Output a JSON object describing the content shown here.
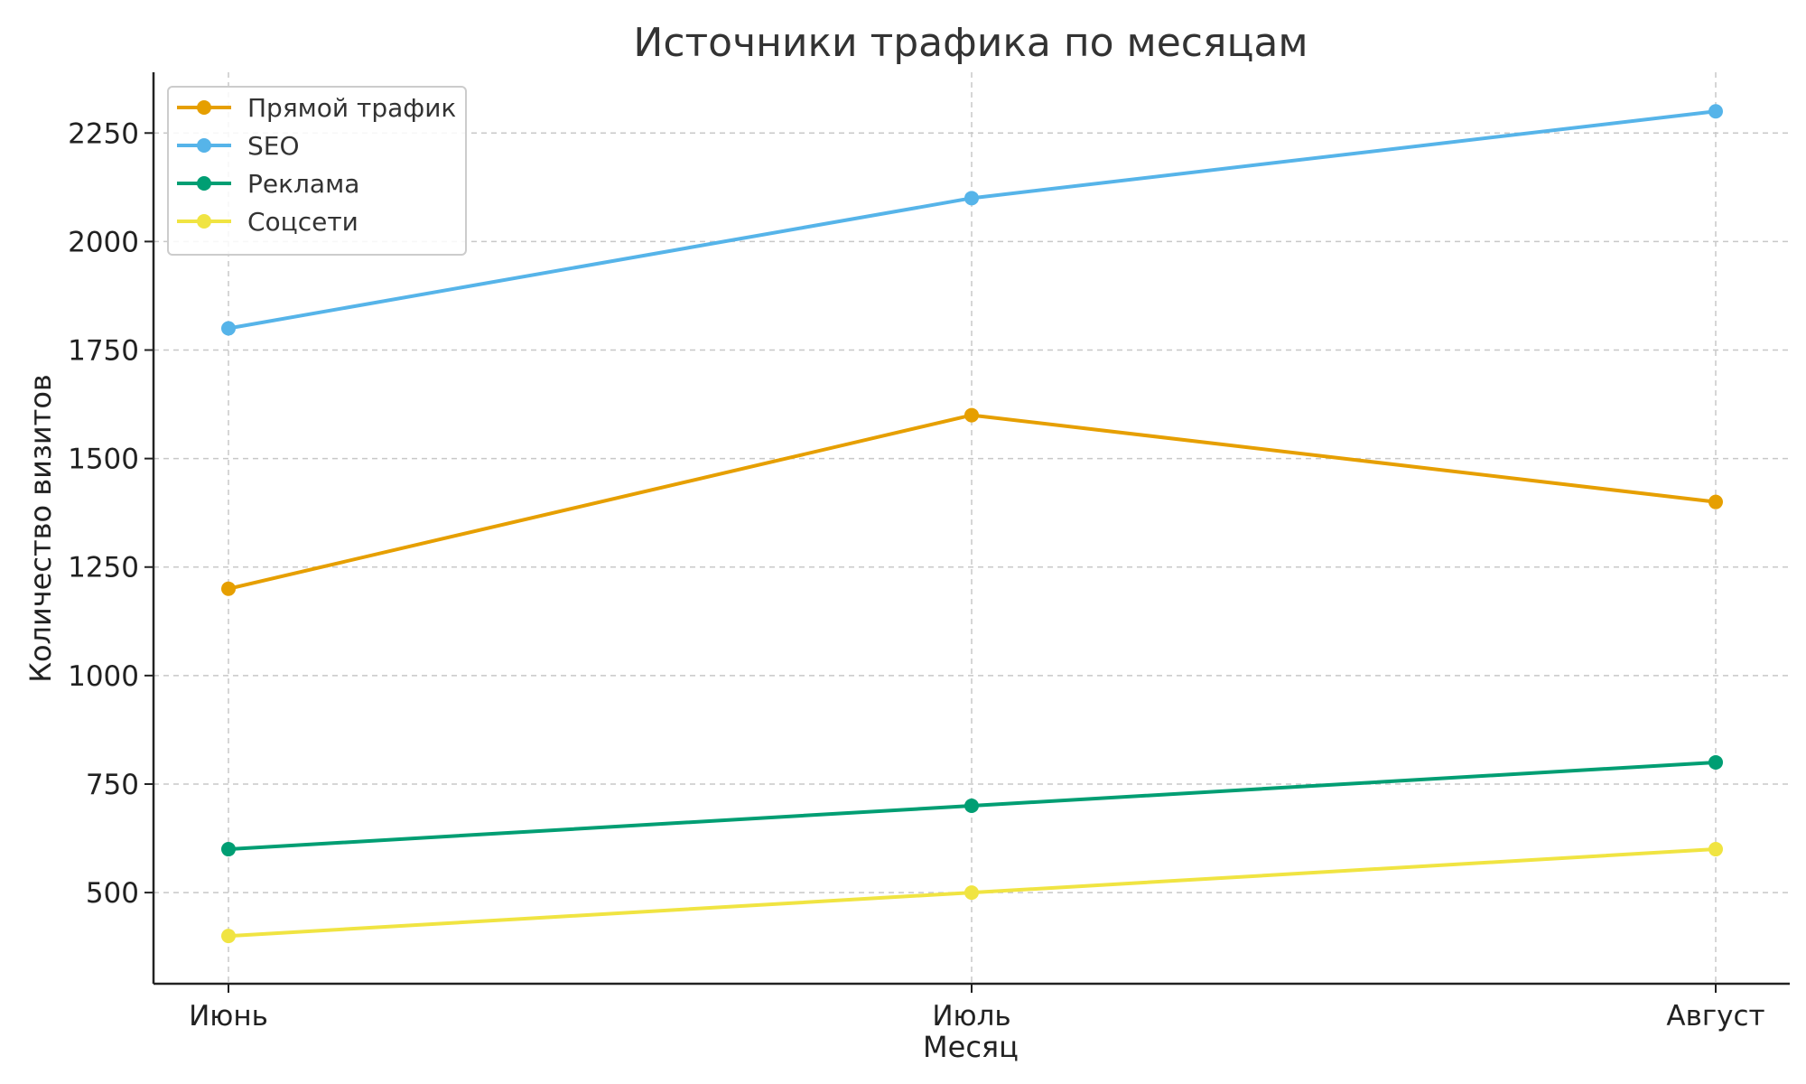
{
  "chart_data": {
    "type": "line",
    "title": "Источники трафика по месяцам",
    "xlabel": "Месяц",
    "ylabel": "Количество визитов",
    "categories": [
      "Июнь",
      "Июль",
      "Август"
    ],
    "ylim": [
      290,
      2390
    ],
    "yticks": [
      500,
      750,
      1000,
      1250,
      1500,
      1750,
      2000,
      2250
    ],
    "grid": true,
    "legend_position": "top-left",
    "series": [
      {
        "name": "Прямой трафик",
        "color": "#E69F00",
        "values": [
          1200,
          1600,
          1400
        ]
      },
      {
        "name": "SEO",
        "color": "#56B4E9",
        "values": [
          1800,
          2100,
          2300
        ]
      },
      {
        "name": "Реклама",
        "color": "#009E73",
        "values": [
          600,
          700,
          800
        ]
      },
      {
        "name": "Соцсети",
        "color": "#F0E442",
        "values": [
          400,
          500,
          600
        ]
      }
    ]
  }
}
